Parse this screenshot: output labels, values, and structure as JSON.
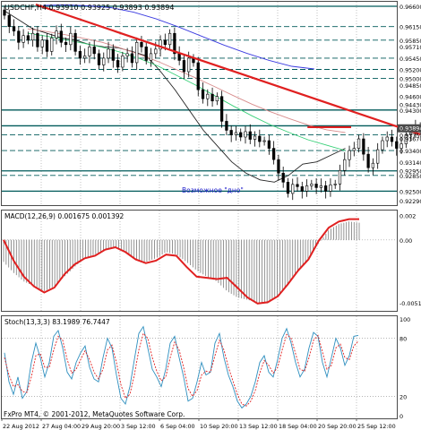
{
  "window": {
    "title": "USDCHF,H4  0.93910 0.93925 0.93893 0.93894",
    "footer": "FxPro MT4, © 2001-2012, MetaQuotes Software Corp."
  },
  "colors": {
    "background": "#ffffff",
    "grid": "#4a4a4a",
    "level_line": "#005a5a",
    "trend_line": "#e02020",
    "ma_fast": "#222222",
    "ma_green": "#38d078",
    "ma_salmon": "#d88c8c",
    "ma_blue": "#3a3ae0",
    "macd_line": "#e02020",
    "macd_hist": "#7a7a7a",
    "stoch_main": "#2e8fbf",
    "stoch_signal": "#e02020",
    "stoch_level": "#888888",
    "price_marker": "#4a4a4a",
    "annotation": "#2222cc"
  },
  "chart_data": [
    {
      "type": "candlestick",
      "panel": "price",
      "symbol": "USDCHF",
      "timeframe": "H4",
      "quote": {
        "open": 0.9391,
        "high": 0.93925,
        "low": 0.93893,
        "close": 0.93894
      },
      "ylim": [
        0.9219,
        0.967
      ],
      "price_labels": [
        "0.96600",
        "0.96150",
        "0.95850",
        "0.95710",
        "0.95450",
        "0.95200",
        "0.95000",
        "0.94850",
        "0.94600",
        "0.94430",
        "0.94300",
        "0.93950",
        "0.93750",
        "0.93670",
        "0.93400",
        "0.93140",
        "0.92950",
        "0.92850",
        "0.92500",
        "0.92290"
      ],
      "current_price_label": "0.93894",
      "x_labels": [
        "22 Aug 2012",
        "27 Aug 04:00",
        "29 Aug 20:00",
        "3 Sep 12:00",
        "6 Sep 04:00",
        "10 Sep 20:00",
        "13 Sep 12:00",
        "18 Sep 04:00",
        "20 Sep 20:00",
        "25 Sep 12:00"
      ],
      "horizontal_levels": [
        0.966,
        0.9615,
        0.9585,
        0.9545,
        0.952,
        0.95,
        0.943,
        0.9395,
        0.9375,
        0.934,
        0.9295,
        0.9285,
        0.925
      ],
      "annotation": "Возможное \"дно\"",
      "closes": [
        0.964,
        0.9615,
        0.9605,
        0.958,
        0.9595,
        0.9585,
        0.96,
        0.957,
        0.9585,
        0.956,
        0.959,
        0.9605,
        0.958,
        0.9575,
        0.96,
        0.956,
        0.9545,
        0.955,
        0.957,
        0.9555,
        0.953,
        0.9545,
        0.9565,
        0.954,
        0.9525,
        0.955,
        0.9555,
        0.9535,
        0.958,
        0.957,
        0.954,
        0.9555,
        0.9565,
        0.9585,
        0.9575,
        0.96,
        0.9555,
        0.954,
        0.9515,
        0.9545,
        0.9535,
        0.9475,
        0.9455,
        0.9465,
        0.945,
        0.946,
        0.9405,
        0.9385,
        0.9375,
        0.938,
        0.937,
        0.9382,
        0.9365,
        0.9372,
        0.936,
        0.9362,
        0.9345,
        0.932,
        0.929,
        0.927,
        0.9245,
        0.9265,
        0.926,
        0.925,
        0.9262,
        0.9266,
        0.9258,
        0.9262,
        0.925,
        0.9264,
        0.9266,
        0.9296,
        0.932,
        0.934,
        0.9345,
        0.9366,
        0.9332,
        0.9302,
        0.9312,
        0.9342,
        0.9362,
        0.937,
        0.936,
        0.9345,
        0.9355,
        0.9375,
        0.938,
        0.9392,
        0.939
      ],
      "moving_averages": [
        {
          "values": [
            0.965,
            0.963,
            0.961,
            0.96,
            0.959,
            0.9585,
            0.9575,
            0.957,
            0.9568,
            0.956,
            0.955,
            0.9515,
            0.9475,
            0.943,
            0.9385,
            0.935,
            0.9315,
            0.929,
            0.9275,
            0.927,
            0.9285,
            0.931,
            0.9315,
            0.933,
            0.9345
          ]
        },
        {
          "values": [
            0.96,
            0.9594,
            0.9586,
            0.9578,
            0.9569,
            0.9558,
            0.9544,
            0.9527,
            0.9506,
            0.9485,
            0.9462,
            0.9439,
            0.9417,
            0.9397,
            0.938,
            0.9364,
            0.9352,
            0.934
          ]
        },
        {
          "values": [
            0.961,
            0.9604,
            0.9597,
            0.9589,
            0.958,
            0.9567,
            0.9553,
            0.9537,
            0.9519,
            0.9501,
            0.9482,
            0.9462,
            0.9443,
            0.9426,
            0.9411,
            0.9397,
            0.9386,
            0.938
          ]
        },
        {
          "values": [
            0.9662,
            0.9663,
            0.9661,
            0.9657,
            0.9647,
            0.9632,
            0.9614,
            0.9594,
            0.9574,
            0.9556,
            0.954,
            0.9527,
            0.9521
          ]
        }
      ],
      "trend_lines": [
        {
          "from": {
            "bar": 7,
            "price": 0.9664
          },
          "to": {
            "bar": 103,
            "price": 0.9376
          }
        },
        {
          "from": {
            "bar": 47,
            "price": 0.9392
          },
          "to": {
            "bar": 92,
            "price": 0.9392
          }
        }
      ]
    },
    {
      "type": "macd",
      "panel": "MACD",
      "title": "MACD(12,26,9) 0.001675 0.001392",
      "ylim": [
        -0.0058,
        0.0024
      ],
      "ticks": [
        "0.002",
        "0.00",
        "-0.00514"
      ],
      "macd": [
        0.0,
        -0.0017,
        -0.003,
        -0.0038,
        -0.0043,
        -0.0039,
        -0.0028,
        -0.002,
        -0.0015,
        -0.0013,
        -0.0008,
        -0.0006,
        -0.001,
        -0.0016,
        -0.0019,
        -0.0017,
        -0.0012,
        -0.0013,
        -0.0022,
        -0.003,
        -0.0031,
        -0.0032,
        -0.0031,
        -0.0039,
        -0.0047,
        -0.0052,
        -0.0051,
        -0.0046,
        -0.0036,
        -0.0025,
        -0.0016,
        -0.0001,
        0.001,
        0.0015,
        0.0017,
        0.0017
      ],
      "histogram": [
        -0.0018,
        -0.0027,
        -0.0034,
        -0.0038,
        -0.0042,
        -0.0038,
        -0.003,
        -0.0022,
        -0.0015,
        -0.0012,
        -0.0008,
        -0.0006,
        -0.001,
        -0.0016,
        -0.0018,
        -0.0015,
        -0.001,
        -0.0012,
        -0.0018,
        -0.0025,
        -0.003,
        -0.0034,
        -0.0042,
        -0.0047,
        -0.0049,
        -0.0051,
        -0.0052,
        -0.0046,
        -0.0036,
        -0.0025,
        -0.0015,
        -0.0003,
        0.0008,
        0.0013,
        0.0015,
        0.0014
      ]
    },
    {
      "type": "stochastic",
      "panel": "Stoch",
      "title": "Stoch(13,3,3) 83.1989 76.7447",
      "ylim": [
        0,
        100
      ],
      "ticks": [
        "100",
        "80",
        "20",
        "0"
      ],
      "levels": [
        80,
        20
      ],
      "main": [
        65,
        35,
        22,
        40,
        18,
        25,
        55,
        75,
        60,
        40,
        55,
        82,
        88,
        70,
        45,
        38,
        55,
        65,
        72,
        50,
        38,
        35,
        60,
        80,
        70,
        42,
        18,
        12,
        30,
        58,
        85,
        92,
        70,
        48,
        40,
        30,
        48,
        75,
        82,
        60,
        40,
        15,
        18,
        35,
        55,
        42,
        45,
        75,
        85,
        60,
        42,
        30,
        15,
        8,
        12,
        20,
        35,
        55,
        62,
        45,
        40,
        58,
        80,
        90,
        75,
        55,
        40,
        48,
        70,
        86,
        82,
        55,
        40,
        60,
        80,
        70,
        52,
        62,
        82,
        83
      ],
      "signal": [
        60,
        42,
        30,
        32,
        25,
        24,
        40,
        62,
        64,
        50,
        50,
        68,
        82,
        78,
        58,
        44,
        48,
        58,
        67,
        58,
        45,
        38,
        48,
        68,
        73,
        55,
        32,
        18,
        22,
        42,
        68,
        85,
        80,
        60,
        46,
        36,
        40,
        60,
        76,
        68,
        50,
        28,
        20,
        26,
        42,
        46,
        45,
        62,
        78,
        68,
        50,
        36,
        22,
        12,
        10,
        15,
        26,
        44,
        57,
        52,
        44,
        50,
        68,
        84,
        80,
        64,
        48,
        46,
        60,
        78,
        83,
        66,
        48,
        52,
        70,
        74,
        60,
        58,
        72,
        77
      ]
    }
  ]
}
